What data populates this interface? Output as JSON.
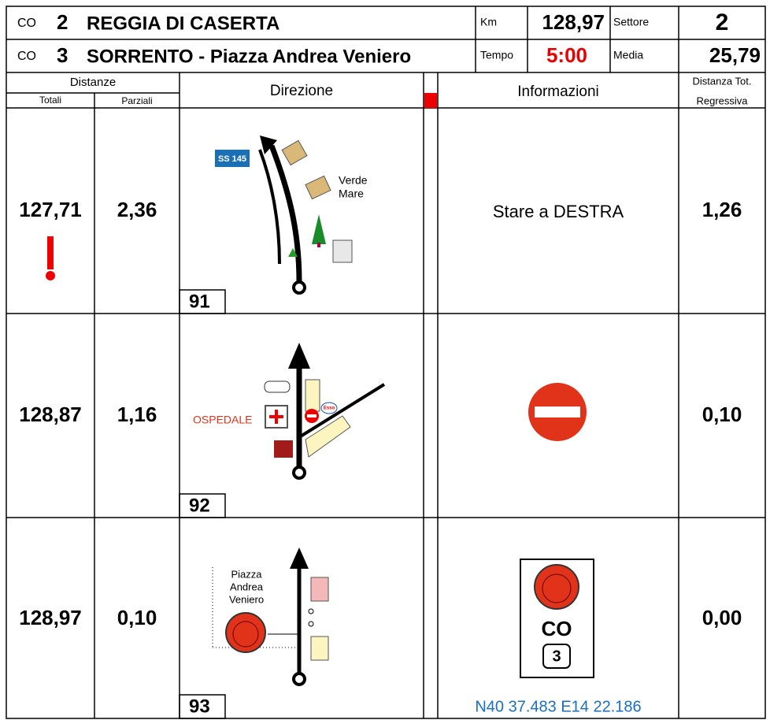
{
  "header": {
    "row1": {
      "co_label": "CO",
      "co_number": "2",
      "place": "REGGIA DI CASERTA",
      "km_label": "Km",
      "km_value": "128,97",
      "settore_label": "Settore",
      "settore_value": "2"
    },
    "row2": {
      "co_label": "CO",
      "co_number": "3",
      "place": "SORRENTO - Piazza Andrea Veniero",
      "tempo_label": "Tempo",
      "tempo_value": "5:00",
      "media_label": "Media",
      "media_value": "25,79"
    }
  },
  "columns": {
    "distanze": "Distanze",
    "totali": "Totali",
    "parziali": "Parziali",
    "direzione": "Direzione",
    "informazioni": "Informazioni",
    "regressiva_1": "Distanza Tot.",
    "regressiva_2": "Regressiva"
  },
  "rows": [
    {
      "totale": "127,71",
      "parziale": "2,36",
      "number": "91",
      "diagram_texts": [
        "SS 145",
        "Verde",
        "Mare"
      ],
      "info": "Stare a DESTRA",
      "regressiva": "1,26"
    },
    {
      "totale": "128,87",
      "parziale": "1,16",
      "number": "92",
      "diagram_texts": [
        "OSPEDALE",
        "Esso"
      ],
      "regressiva": "0,10"
    },
    {
      "totale": "128,97",
      "parziale": "0,10",
      "number": "93",
      "diagram_texts": [
        "Piazza",
        "Andrea",
        "Veniero"
      ],
      "info_sign": [
        "CO",
        "3"
      ],
      "coordinates": "N40 37.483 E14 22.186",
      "regressiva": "0,00"
    }
  ]
}
